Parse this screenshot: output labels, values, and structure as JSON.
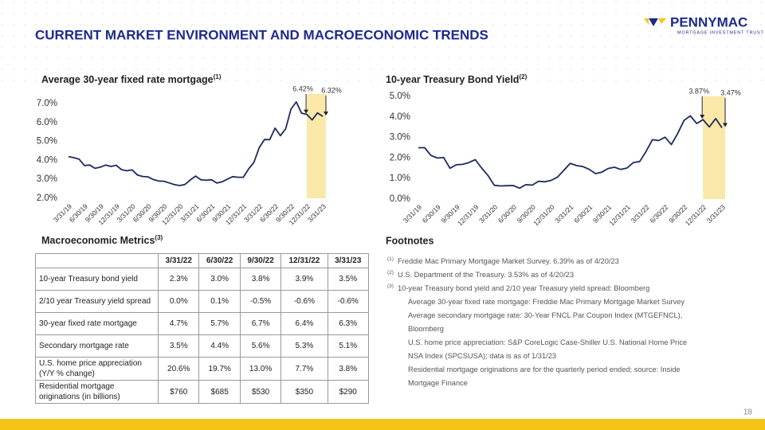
{
  "slide": {
    "title": "CURRENT MARKET ENVIRONMENT AND MACROECONOMIC TRENDS",
    "logo": "PENNYMAC",
    "logo_sub": "MORTGAGE INVESTMENT TRUST",
    "page": "18"
  },
  "chart_data": [
    {
      "type": "line",
      "title": "Average 30-year fixed rate mortgage",
      "title_note": "(1)",
      "categories": [
        "3/31/19",
        null,
        null,
        "6/30/19",
        null,
        null,
        "9/30/19",
        null,
        null,
        "12/31/19",
        null,
        null,
        "3/31/20",
        null,
        null,
        "6/30/20",
        null,
        null,
        "9/30/20",
        null,
        null,
        "12/31/20",
        null,
        null,
        "3/31/21",
        null,
        null,
        "6/30/21",
        null,
        null,
        "9/30/21",
        null,
        null,
        "12/31/21",
        null,
        null,
        "3/31/22",
        null,
        null,
        "6/30/22",
        null,
        null,
        "9/30/22",
        null,
        null,
        "12/31/22",
        null,
        null,
        "3/31/23"
      ],
      "values": [
        4.2,
        4.14,
        4.06,
        3.73,
        3.75,
        3.58,
        3.64,
        3.75,
        3.68,
        3.74,
        3.51,
        3.45,
        3.5,
        3.23,
        3.15,
        3.13,
        2.99,
        2.91,
        2.9,
        2.81,
        2.72,
        2.67,
        2.73,
        2.97,
        3.17,
        2.98,
        2.95,
        2.98,
        2.8,
        2.87,
        3.01,
        3.14,
        3.11,
        3.11,
        3.55,
        3.89,
        4.67,
        5.1,
        5.09,
        5.7,
        5.3,
        5.66,
        6.7,
        7.08,
        6.49,
        6.42,
        6.13,
        6.5,
        6.32
      ],
      "color": "#1f2a5c",
      "ylim": [
        2,
        7.5
      ],
      "yticks": [
        {
          "value": 2,
          "label": "2.0%"
        },
        {
          "value": 3,
          "label": "3.0%"
        },
        {
          "value": 4,
          "label": "4.0%"
        },
        {
          "value": 5,
          "label": "5.0%"
        },
        {
          "value": 6,
          "label": "6.0%"
        },
        {
          "value": 7,
          "label": "7.0%"
        }
      ],
      "highlight": {
        "from": "12/31/22",
        "to": "3/31/23",
        "color": "#f9e8a8"
      },
      "annotations": [
        {
          "x": "12/31/22",
          "value": 6.42,
          "label": "6.42%"
        },
        {
          "x": "3/31/23",
          "value": 6.32,
          "label": "6.32%"
        }
      ]
    },
    {
      "type": "line",
      "title": "10-year Treasury Bond Yield",
      "title_note": "(2)",
      "categories": [
        "3/31/19",
        null,
        null,
        "6/30/19",
        null,
        null,
        "9/30/19",
        null,
        null,
        "12/31/19",
        null,
        null,
        "3/31/20",
        null,
        null,
        "6/30/20",
        null,
        null,
        "9/30/20",
        null,
        null,
        "12/31/20",
        null,
        null,
        "3/31/21",
        null,
        null,
        "6/30/21",
        null,
        null,
        "9/30/21",
        null,
        null,
        "12/31/21",
        null,
        null,
        "3/31/22",
        null,
        null,
        "6/30/22",
        null,
        null,
        "9/30/22",
        null,
        null,
        "12/31/22",
        null,
        null,
        "3/31/23"
      ],
      "values": [
        2.5,
        2.5,
        2.12,
        2.0,
        2.02,
        1.5,
        1.67,
        1.69,
        1.78,
        1.92,
        1.51,
        1.15,
        0.67,
        0.64,
        0.65,
        0.66,
        0.53,
        0.7,
        0.68,
        0.87,
        0.84,
        0.91,
        1.07,
        1.4,
        1.74,
        1.63,
        1.58,
        1.45,
        1.24,
        1.31,
        1.49,
        1.55,
        1.44,
        1.51,
        1.78,
        1.83,
        2.32,
        2.89,
        2.85,
        3.01,
        2.65,
        3.19,
        3.83,
        4.05,
        3.68,
        3.87,
        3.51,
        3.92,
        3.47
      ],
      "color": "#1f2a5c",
      "ylim": [
        0,
        5
      ],
      "yticks": [
        {
          "value": 0,
          "label": "0.0%"
        },
        {
          "value": 1,
          "label": "1.0%"
        },
        {
          "value": 2,
          "label": "2.0%"
        },
        {
          "value": 3,
          "label": "3.0%"
        },
        {
          "value": 4,
          "label": "4.0%"
        },
        {
          "value": 5,
          "label": "5.0%"
        }
      ],
      "highlight": {
        "from": "12/31/22",
        "to": "3/31/23",
        "color": "#f9e8a8"
      },
      "annotations": [
        {
          "x": "12/31/22",
          "value": 3.87,
          "label": "3.87%"
        },
        {
          "x": "3/31/23",
          "value": 3.47,
          "label": "3.47%"
        }
      ]
    }
  ],
  "table": {
    "title": "Macroeconomic Metrics",
    "title_note": "(3)",
    "columns": [
      "3/31/22",
      "6/30/22",
      "9/30/22",
      "12/31/22",
      "3/31/23"
    ],
    "rows": [
      {
        "label": "10-year Treasury bond yield",
        "values": [
          "2.3%",
          "3.0%",
          "3.8%",
          "3.9%",
          "3.5%"
        ]
      },
      {
        "label": "2/10 year Treasury yield spread",
        "values": [
          "0.0%",
          "0.1%",
          "-0.5%",
          "-0.6%",
          "-0.6%"
        ]
      },
      {
        "label": "30-year fixed rate mortgage",
        "values": [
          "4.7%",
          "5.7%",
          "6.7%",
          "6.4%",
          "6.3%"
        ]
      },
      {
        "label": "Secondary mortgage rate",
        "values": [
          "3.5%",
          "4.4%",
          "5.6%",
          "5.3%",
          "5.1%"
        ]
      },
      {
        "label": "U.S. home price appreciation (Y/Y % change)",
        "values": [
          "20.6%",
          "19.7%",
          "13.0%",
          "7.7%",
          "3.8%"
        ]
      },
      {
        "label": "Residential mortgage originations (in billions)",
        "values": [
          "$760",
          "$685",
          "$530",
          "$350",
          "$290"
        ]
      }
    ]
  },
  "footnotes": {
    "title": "Footnotes",
    "items": [
      {
        "marker": "(1)",
        "lines": [
          "Freddie Mac Primary Mortgage Market Survey. 6.39% as of 4/20/23"
        ]
      },
      {
        "marker": "(2)",
        "lines": [
          "U.S. Department of the Treasury. 3.53% as of 4/20/23"
        ]
      },
      {
        "marker": "(3)",
        "lines": [
          "10-year Treasury bond yield and 2/10 year Treasury yield spread: Bloomberg",
          "Average 30-year fixed rate mortgage: Freddie Mac Primary Mortgage Market Survey",
          "Average secondary mortgage rate: 30-Year FNCL Par Coupon Index (MTGEFNCL), Bloomberg",
          "U.S. home price appreciation: S&P CoreLogic Case-Shiller U.S. National Home Price NSA Index (SPCSUSA); data is as of 1/31/23",
          "Residential mortgage originations are for the quarterly period ended; source: Inside Mortgage Finance"
        ]
      }
    ]
  }
}
